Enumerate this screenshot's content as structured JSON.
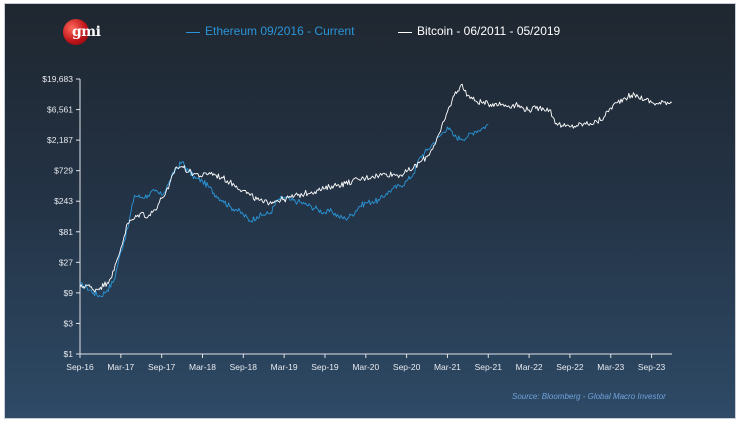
{
  "brand": {
    "logo_text": "gmi"
  },
  "source_note": "Source: Bloomberg - Global Macro Investor",
  "colors": {
    "ethereum": "#2a95d8",
    "bitcoin": "#ffffff",
    "axis": "#dfe3e8",
    "source": "#6fa2dc"
  },
  "chart_data": {
    "type": "line",
    "title": "",
    "xlabel": "",
    "ylabel": "",
    "y_scale": "log3",
    "ylim": [
      1,
      19683
    ],
    "y_ticks": [
      1,
      3,
      9,
      27,
      81,
      243,
      729,
      2187,
      6561,
      19683
    ],
    "y_tick_labels": [
      "$1",
      "$3",
      "$9",
      "$27",
      "$81",
      "$243",
      "$729",
      "$2,187",
      "$6,561",
      "$19,683"
    ],
    "x_range_months": [
      0,
      87
    ],
    "x_ticks": [
      0,
      6,
      12,
      18,
      24,
      30,
      36,
      42,
      48,
      54,
      60,
      66,
      72,
      78,
      84
    ],
    "x_tick_labels": [
      "Sep-16",
      "Mar-17",
      "Sep-17",
      "Mar-18",
      "Sep-18",
      "Mar-19",
      "Sep-19",
      "Mar-20",
      "Sep-20",
      "Mar-21",
      "Sep-21",
      "Mar-22",
      "Sep-22",
      "Mar-23",
      "Sep-23"
    ],
    "x_unit": "months since Sep-16 (aligned start)",
    "series": [
      {
        "name": "Ethereum 09/2016 - Current",
        "color": "#2a95d8",
        "x": [
          0,
          1,
          2,
          3,
          4,
          5,
          6,
          7,
          8,
          9,
          10,
          11,
          12,
          13,
          14,
          15,
          16,
          17,
          18,
          19,
          20,
          21,
          22,
          23,
          24,
          25,
          26,
          27,
          28,
          29,
          30,
          31,
          32,
          33,
          34,
          35,
          36,
          37,
          38,
          39,
          40,
          41,
          42,
          43,
          44,
          45,
          46,
          47,
          48,
          49,
          50,
          51,
          52,
          53,
          54,
          55,
          56,
          57,
          58,
          59,
          60
        ],
        "y": [
          12,
          11,
          9,
          8,
          10,
          14,
          40,
          90,
          300,
          280,
          300,
          350,
          300,
          450,
          750,
          1000,
          700,
          550,
          500,
          400,
          300,
          250,
          200,
          180,
          150,
          120,
          140,
          150,
          160,
          250,
          280,
          250,
          240,
          220,
          200,
          180,
          160,
          170,
          140,
          130,
          150,
          200,
          230,
          240,
          250,
          320,
          380,
          420,
          500,
          650,
          1200,
          1500,
          2000,
          2600,
          3500,
          2500,
          2300,
          2500,
          3000,
          3300,
          3800
        ]
      },
      {
        "name": "Bitcoin - 06/2011 - 05/2019",
        "color": "#ffffff",
        "x": [
          0,
          1,
          2,
          3,
          4,
          5,
          6,
          7,
          8,
          9,
          10,
          11,
          12,
          13,
          14,
          15,
          16,
          17,
          18,
          19,
          20,
          21,
          22,
          23,
          24,
          25,
          26,
          27,
          28,
          29,
          30,
          31,
          32,
          33,
          34,
          35,
          36,
          37,
          38,
          39,
          40,
          41,
          42,
          43,
          44,
          45,
          46,
          47,
          48,
          49,
          50,
          51,
          52,
          53,
          54,
          55,
          56,
          57,
          58,
          59,
          60,
          61,
          62,
          63,
          64,
          65,
          66,
          67,
          68,
          69,
          70,
          71,
          72,
          73,
          74,
          75,
          76,
          77,
          78,
          79,
          80,
          81,
          82,
          83,
          84,
          85,
          86,
          87
        ],
        "y": [
          11,
          12,
          10,
          11,
          13,
          20,
          45,
          110,
          130,
          160,
          140,
          180,
          270,
          380,
          800,
          850,
          700,
          650,
          600,
          680,
          620,
          560,
          480,
          420,
          360,
          300,
          260,
          230,
          240,
          250,
          260,
          280,
          300,
          320,
          340,
          360,
          380,
          420,
          440,
          460,
          500,
          530,
          560,
          600,
          620,
          650,
          640,
          620,
          700,
          800,
          1000,
          1200,
          1800,
          3000,
          6000,
          11000,
          16000,
          11000,
          9000,
          8500,
          8000,
          8200,
          7900,
          7500,
          7800,
          7000,
          6500,
          6800,
          7000,
          6500,
          4000,
          3600,
          3500,
          3700,
          3900,
          4000,
          4200,
          5000,
          7000,
          8500,
          10000,
          11000,
          10500,
          9500,
          8500,
          8000,
          8700,
          8500
        ]
      }
    ]
  }
}
